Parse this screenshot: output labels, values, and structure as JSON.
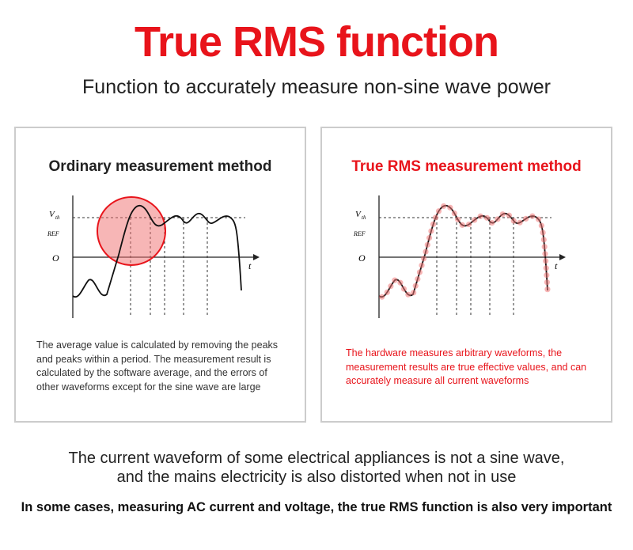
{
  "header": {
    "title": "True RMS function",
    "subtitle": "Function to accurately measure non-sine wave power"
  },
  "panels": [
    {
      "heading": "Ordinary measurement method",
      "graph_labels": {
        "v": "V",
        "v_sub": "th",
        "ref": "REF",
        "origin": "O",
        "t": "t"
      },
      "text": "The average value is calculated by removing the peaks and peaks within a period. The measurement result is calculated by the software average, and the errors of other waveforms except for the sine wave are large"
    },
    {
      "heading": "True RMS measurement method",
      "graph_labels": {
        "v": "V",
        "v_sub": "th",
        "ref": "REF",
        "origin": "O",
        "t": "t"
      },
      "text": "The hardware measures arbitrary waveforms, the measurement results are true effective values, and can accurately measure all current waveforms"
    }
  ],
  "footer": {
    "lines": [
      "The current waveform of some electrical appliances is not a sine wave,",
      "and the mains electricity is also distorted when not in use"
    ],
    "emphasis": "In some cases, measuring AC current and voltage, the true RMS function is also very important"
  }
}
